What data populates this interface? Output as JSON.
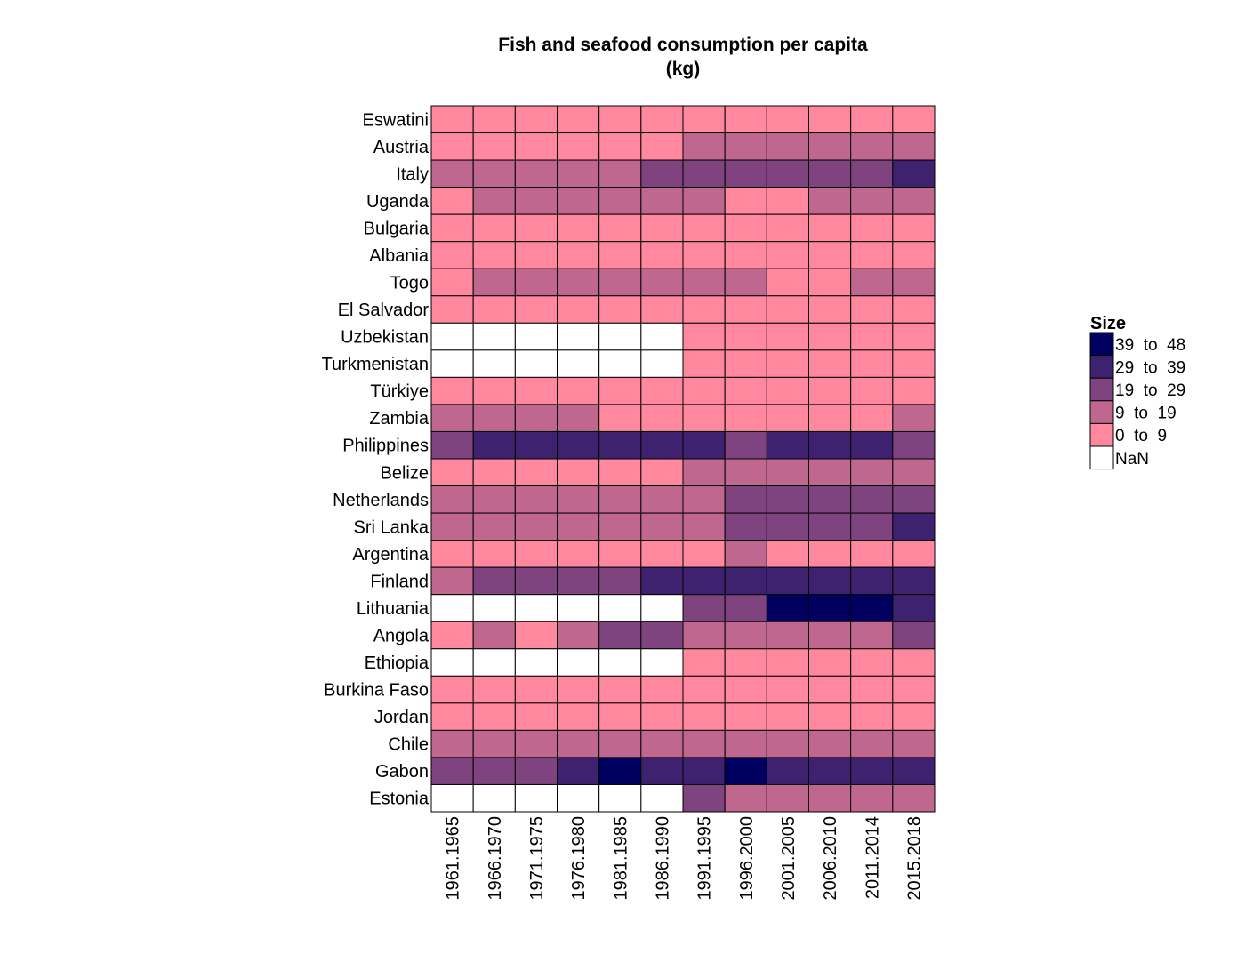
{
  "chart_data": {
    "type": "heatmap",
    "title": "Fish and seafood consumption per capita",
    "subtitle": "(kg)",
    "rows": [
      "Eswatini",
      "Austria",
      "Italy",
      "Uganda",
      "Bulgaria",
      "Albania",
      "Togo",
      "El Salvador",
      "Uzbekistan",
      "Turkmenistan",
      "Türkiye",
      "Zambia",
      "Philippines",
      "Belize",
      "Netherlands",
      "Sri Lanka",
      "Argentina",
      "Finland",
      "Lithuania",
      "Angola",
      "Ethiopia",
      "Burkina Faso",
      "Jordan",
      "Chile",
      "Gabon",
      "Estonia"
    ],
    "columns": [
      "1961.1965",
      "1966.1970",
      "1971.1975",
      "1976.1980",
      "1981.1985",
      "1986.1990",
      "1991.1995",
      "1996.2000",
      "2001.2005",
      "2006.2010",
      "2011.2014",
      "2015.2018"
    ],
    "bin_labels": [
      "0  to  9",
      "9  to  19",
      "19  to  29",
      "29  to  39",
      "39  to  48"
    ],
    "nan_label": "NaN",
    "cell_bins": [
      [
        0,
        0,
        0,
        0,
        0,
        0,
        0,
        0,
        0,
        0,
        0,
        0
      ],
      [
        0,
        0,
        0,
        0,
        0,
        0,
        1,
        1,
        1,
        1,
        1,
        1
      ],
      [
        1,
        1,
        1,
        1,
        1,
        2,
        2,
        2,
        2,
        2,
        2,
        3
      ],
      [
        0,
        1,
        1,
        1,
        1,
        1,
        1,
        0,
        0,
        1,
        1,
        1
      ],
      [
        0,
        0,
        0,
        0,
        0,
        0,
        0,
        0,
        0,
        0,
        0,
        0
      ],
      [
        0,
        0,
        0,
        0,
        0,
        0,
        0,
        0,
        0,
        0,
        0,
        0
      ],
      [
        0,
        1,
        1,
        1,
        1,
        1,
        1,
        1,
        0,
        0,
        1,
        1
      ],
      [
        0,
        0,
        0,
        0,
        0,
        0,
        0,
        0,
        0,
        0,
        0,
        0
      ],
      [
        null,
        null,
        null,
        null,
        null,
        null,
        0,
        0,
        0,
        0,
        0,
        0
      ],
      [
        null,
        null,
        null,
        null,
        null,
        null,
        0,
        0,
        0,
        0,
        0,
        0
      ],
      [
        0,
        0,
        0,
        0,
        0,
        0,
        0,
        0,
        0,
        0,
        0,
        0
      ],
      [
        1,
        1,
        1,
        1,
        0,
        0,
        0,
        0,
        0,
        0,
        0,
        1
      ],
      [
        2,
        3,
        3,
        3,
        3,
        3,
        3,
        2,
        3,
        3,
        3,
        2
      ],
      [
        0,
        0,
        0,
        0,
        0,
        0,
        1,
        1,
        1,
        1,
        1,
        1
      ],
      [
        1,
        1,
        1,
        1,
        1,
        1,
        1,
        2,
        2,
        2,
        2,
        2
      ],
      [
        1,
        1,
        1,
        1,
        1,
        1,
        1,
        2,
        2,
        2,
        2,
        3
      ],
      [
        0,
        0,
        0,
        0,
        0,
        0,
        0,
        1,
        0,
        0,
        0,
        0
      ],
      [
        1,
        2,
        2,
        2,
        2,
        3,
        3,
        3,
        3,
        3,
        3,
        3
      ],
      [
        null,
        null,
        null,
        null,
        null,
        null,
        2,
        2,
        4,
        4,
        4,
        3
      ],
      [
        0,
        1,
        0,
        1,
        2,
        2,
        1,
        1,
        1,
        1,
        1,
        2
      ],
      [
        null,
        null,
        null,
        null,
        null,
        null,
        0,
        0,
        0,
        0,
        0,
        0
      ],
      [
        0,
        0,
        0,
        0,
        0,
        0,
        0,
        0,
        0,
        0,
        0,
        0
      ],
      [
        0,
        0,
        0,
        0,
        0,
        0,
        0,
        0,
        0,
        0,
        0,
        0
      ],
      [
        1,
        1,
        1,
        1,
        1,
        1,
        1,
        1,
        1,
        1,
        1,
        1
      ],
      [
        2,
        2,
        2,
        3,
        4,
        3,
        3,
        4,
        3,
        3,
        3,
        3
      ],
      [
        null,
        null,
        null,
        null,
        null,
        null,
        2,
        1,
        1,
        1,
        1,
        1
      ]
    ],
    "legend": {
      "title": "Size",
      "placement": "right",
      "entries": [
        {
          "label": "39  to  48",
          "color": "#000060"
        },
        {
          "label": "29  to  39",
          "color": "#3e2270"
        },
        {
          "label": "19  to  29",
          "color": "#7f4480"
        },
        {
          "label": "9  to  19",
          "color": "#bf678f"
        },
        {
          "label": "0  to  9",
          "color": "#ff889f"
        },
        {
          "label": "NaN",
          "color": "#ffffff"
        }
      ]
    },
    "colors": {
      "bins": [
        "#ff889f",
        "#bf678f",
        "#7f4480",
        "#3e2270",
        "#000060"
      ],
      "nan": "#ffffff",
      "cell_border": "#000000"
    }
  }
}
